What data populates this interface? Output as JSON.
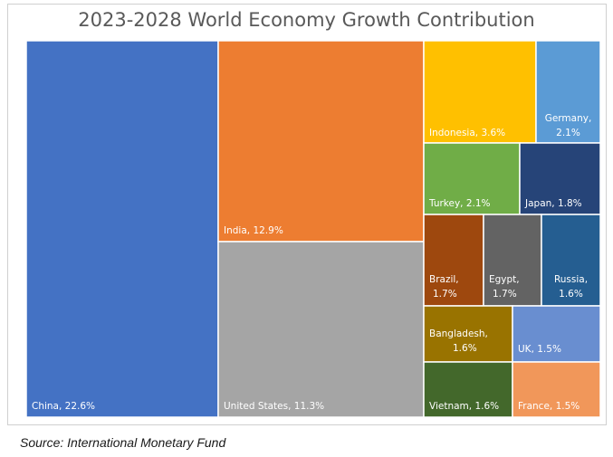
{
  "chart_data": {
    "type": "treemap",
    "title": "2023-2028 World Economy Growth Contribution",
    "source": "Source: International Monetary Fund",
    "unit": "%",
    "items": [
      {
        "name": "China",
        "value": 22.6,
        "label": "China, 22.6%",
        "color": "#4472C4"
      },
      {
        "name": "India",
        "value": 12.9,
        "label": "India, 12.9%",
        "color": "#ED7D31"
      },
      {
        "name": "United States",
        "value": 11.3,
        "label": "United States, 11.3%",
        "color": "#A5A5A5"
      },
      {
        "name": "Indonesia",
        "value": 3.6,
        "label": "Indonesia, 3.6%",
        "color": "#FFC000"
      },
      {
        "name": "Germany",
        "value": 2.1,
        "label": "Germany, 2.1%",
        "color": "#5B9BD5"
      },
      {
        "name": "Turkey",
        "value": 2.1,
        "label": "Turkey, 2.1%",
        "color": "#70AD47"
      },
      {
        "name": "Japan",
        "value": 1.8,
        "label": "Japan, 1.8%",
        "color": "#264478"
      },
      {
        "name": "Brazil",
        "value": 1.7,
        "label": "Brazil, 1.7%",
        "color": "#9E480E"
      },
      {
        "name": "Egypt",
        "value": 1.7,
        "label": "Egypt, 1.7%",
        "color": "#636363"
      },
      {
        "name": "Russia",
        "value": 1.6,
        "label": "Russia, 1.6%",
        "color": "#255E91"
      },
      {
        "name": "Bangladesh",
        "value": 1.6,
        "label": "Bangladesh, 1.6%",
        "color": "#997300"
      },
      {
        "name": "UK",
        "value": 1.5,
        "label": "UK, 1.5%",
        "color": "#698ED0"
      },
      {
        "name": "Vietnam",
        "value": 1.6,
        "label": "Vietnam, 1.6%",
        "color": "#43682B"
      },
      {
        "name": "France",
        "value": 1.5,
        "label": "France, 1.5%",
        "color": "#F1975A"
      }
    ]
  }
}
